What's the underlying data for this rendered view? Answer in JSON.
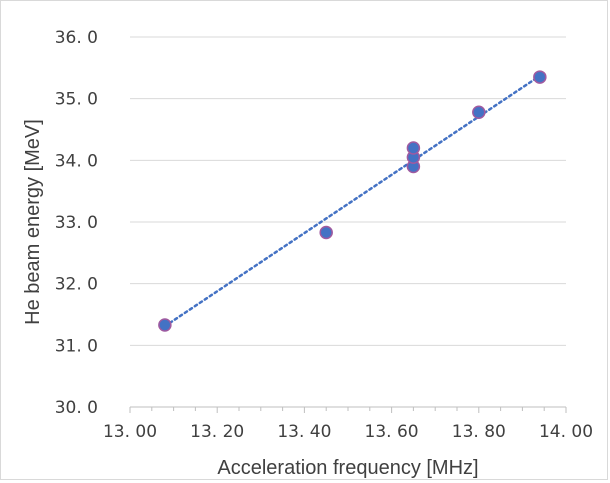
{
  "chart_data": {
    "type": "scatter",
    "xlabel": "Acceleration frequency [MHz]",
    "ylabel": "He beam energy [MeV]",
    "xlim": [
      13.0,
      14.0
    ],
    "ylim": [
      30.0,
      36.0
    ],
    "x_ticks": [
      13.0,
      13.2,
      13.4,
      13.6,
      13.8,
      14.0
    ],
    "y_ticks": [
      30.0,
      31.0,
      32.0,
      33.0,
      34.0,
      35.0,
      36.0
    ],
    "x_tick_labels": [
      "13. 00",
      "13. 20",
      "13. 40",
      "13. 60",
      "13. 80",
      "14. 00"
    ],
    "y_tick_labels": [
      "30. 0",
      "31. 0",
      "32. 0",
      "33. 0",
      "34. 0",
      "35. 0",
      "36. 0"
    ],
    "grid": "horizontal",
    "series": [
      {
        "x": [
          13.08,
          13.45,
          13.65,
          13.65,
          13.65,
          13.8,
          13.94
        ],
        "y": [
          31.33,
          32.83,
          33.9,
          34.05,
          34.2,
          34.78,
          35.35
        ],
        "color": "#4472c4",
        "marker_edge_color": "#a05aa0"
      }
    ],
    "trendline": {
      "style": "dotted",
      "color": "#4472c4",
      "x_range": [
        13.08,
        13.94
      ],
      "y_range": [
        31.31,
        35.37
      ]
    }
  }
}
